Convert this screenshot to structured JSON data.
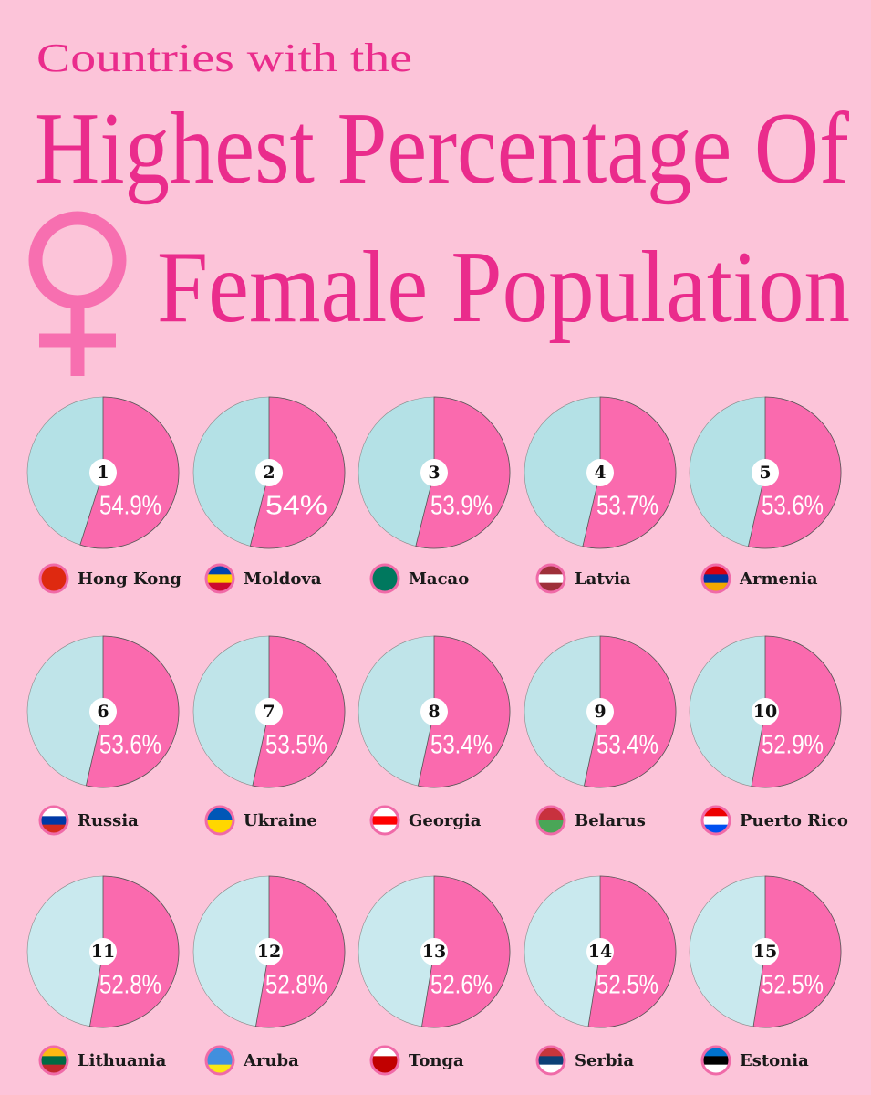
{
  "header": {
    "line1": "Countries with the",
    "line2": "Highest Percentage Of",
    "line3": "Female Population"
  },
  "chart_data": [
    {
      "type": "pie",
      "rank": 1,
      "country": "Hong Kong",
      "values": [
        54.9
      ],
      "value_labels": [
        "54.9%"
      ],
      "color": "#fa6aae"
    },
    {
      "type": "pie",
      "rank": 2,
      "country": "Moldova",
      "values": [
        54
      ],
      "value_labels": [
        "54%"
      ],
      "color": "#fa6aae"
    },
    {
      "type": "pie",
      "rank": 3,
      "country": "Macao",
      "values": [
        53.9
      ],
      "value_labels": [
        "53.9%"
      ],
      "color": "#fa6aae"
    },
    {
      "type": "pie",
      "rank": 4,
      "country": "Latvia",
      "values": [
        53.7
      ],
      "value_labels": [
        "53.7%"
      ],
      "color": "#fa6aae"
    },
    {
      "type": "pie",
      "rank": 5,
      "country": "Armenia",
      "values": [
        53.6
      ],
      "value_labels": [
        "53.6%"
      ],
      "color": "#fa6aae"
    },
    {
      "type": "pie",
      "rank": 6,
      "country": "Russia",
      "values": [
        53.6
      ],
      "value_labels": [
        "53.6%"
      ],
      "color": "#fa6aae"
    },
    {
      "type": "pie",
      "rank": 7,
      "country": "Ukraine",
      "values": [
        53.5
      ],
      "value_labels": [
        "53.5%"
      ],
      "color": "#fa6aae"
    },
    {
      "type": "pie",
      "rank": 8,
      "country": "Georgia",
      "values": [
        53.4
      ],
      "value_labels": [
        "53.4%"
      ],
      "color": "#fa6aae"
    },
    {
      "type": "pie",
      "rank": 9,
      "country": "Belarus",
      "values": [
        53.4
      ],
      "value_labels": [
        "53.4%"
      ],
      "color": "#fa6aae"
    },
    {
      "type": "pie",
      "rank": 10,
      "country": "Puerto Rico",
      "values": [
        52.9
      ],
      "value_labels": [
        "52.9%"
      ],
      "color": "#fa6aae"
    },
    {
      "type": "pie",
      "rank": 11,
      "country": "Lithuania",
      "values": [
        52.8
      ],
      "value_labels": [
        "52.8%"
      ],
      "color": "#fa6aae"
    },
    {
      "type": "pie",
      "rank": 12,
      "country": "Aruba",
      "values": [
        52.8
      ],
      "value_labels": [
        "52.8%"
      ],
      "color": "#fa6aae"
    },
    {
      "type": "pie",
      "rank": 13,
      "country": "Tonga",
      "values": [
        52.6
      ],
      "value_labels": [
        "52.6%"
      ],
      "color": "#fa6aae"
    },
    {
      "type": "pie",
      "rank": 14,
      "country": "Serbia",
      "values": [
        52.5
      ],
      "value_labels": [
        "52.5%"
      ],
      "color": "#fa6aae"
    },
    {
      "type": "pie",
      "rank": 15,
      "country": "Estonia",
      "values": [
        52.5
      ],
      "value_labels": [
        "52.5%"
      ],
      "color": "#fa6aae"
    }
  ]
}
